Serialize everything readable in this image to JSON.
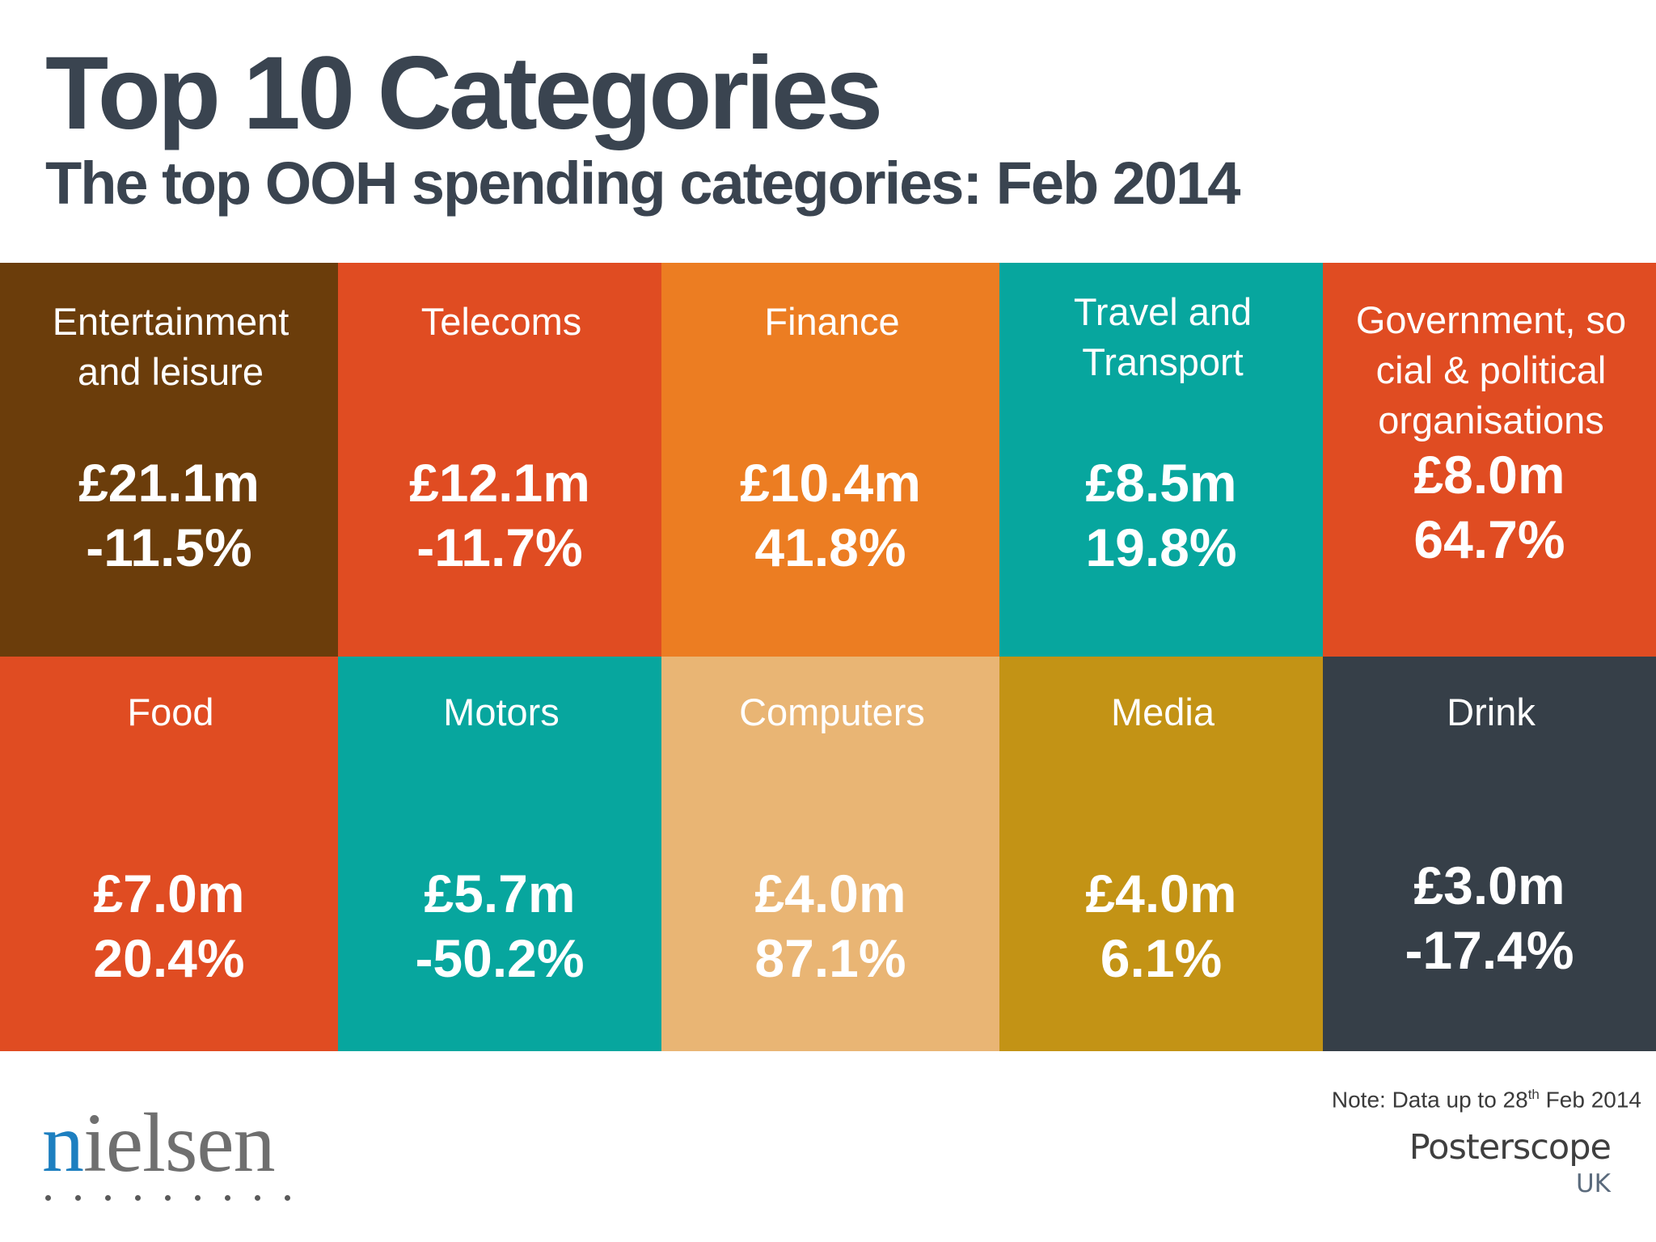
{
  "title": "Top 10 Categories",
  "subtitle": "The top OOH spending categories: Feb 2014",
  "chart_data": {
    "type": "table",
    "title": "Top 10 Categories",
    "subtitle": "The top OOH spending categories: Feb 2014",
    "categories": [
      {
        "label": "Entertainment and leisure",
        "spend": "£21.1m",
        "change": "-11.5%",
        "spend_m": 21.1,
        "change_pct": -11.5,
        "color": "#6b3d0b"
      },
      {
        "label": "Telecoms",
        "spend": "£12.1m",
        "change": "-11.7%",
        "spend_m": 12.1,
        "change_pct": -11.7,
        "color": "#e04c22"
      },
      {
        "label": "Finance",
        "spend": "£10.4m",
        "change": "41.8%",
        "spend_m": 10.4,
        "change_pct": 41.8,
        "color": "#ec7d22"
      },
      {
        "label": "Travel and Transport",
        "spend": "£8.5m",
        "change": "19.8%",
        "spend_m": 8.5,
        "change_pct": 19.8,
        "color": "#07a69e"
      },
      {
        "label": "Government, social & political organisations",
        "spend": "£8.0m",
        "change": "64.7%",
        "spend_m": 8.0,
        "change_pct": 64.7,
        "color": "#e04c22"
      },
      {
        "label": "Food",
        "spend": "£7.0m",
        "change": "20.4%",
        "spend_m": 7.0,
        "change_pct": 20.4,
        "color": "#e04c22"
      },
      {
        "label": "Motors",
        "spend": "£5.7m",
        "change": "-50.2%",
        "spend_m": 5.7,
        "change_pct": -50.2,
        "color": "#07a69e"
      },
      {
        "label": "Computers",
        "spend": "£4.0m",
        "change": "87.1%",
        "spend_m": 4.0,
        "change_pct": 87.1,
        "color": "#e9b574"
      },
      {
        "label": "Media",
        "spend": "£4.0m",
        "change": "6.1%",
        "spend_m": 4.0,
        "change_pct": 6.1,
        "color": "#c39315"
      },
      {
        "label": "Drink",
        "spend": "£3.0m",
        "change": "-17.4%",
        "spend_m": 3.0,
        "change_pct": -17.4,
        "color": "#363f48"
      }
    ]
  },
  "tiles": {
    "entertainment": {
      "line1": "Entertainment",
      "line2": "and leisure",
      "spend": "£21.1m",
      "change": "-11.5%"
    },
    "telecoms": {
      "line1": "Telecoms",
      "spend": "£12.1m",
      "change": "-11.7%"
    },
    "finance": {
      "line1": "Finance",
      "spend": "£10.4m",
      "change": "41.8%"
    },
    "travel": {
      "line1": "Travel and",
      "line2": "Transport",
      "spend": "£8.5m",
      "change": "19.8%"
    },
    "government": {
      "line1": "Government, so",
      "line2": "cial & political",
      "line3": "organisations",
      "spend": "£8.0m",
      "change": "64.7%"
    },
    "food": {
      "line1": "Food",
      "spend": "£7.0m",
      "change": "20.4%"
    },
    "motors": {
      "line1": "Motors",
      "spend": "£5.7m",
      "change": "-50.2%"
    },
    "computers": {
      "line1": "Computers",
      "spend": "£4.0m",
      "change": "87.1%"
    },
    "media": {
      "line1": "Media",
      "spend": "£4.0m",
      "change": "6.1%"
    },
    "drink": {
      "line1": "Drink",
      "spend": "£3.0m",
      "change": "-17.4%"
    }
  },
  "colors": {
    "brown": "#6b3d0b",
    "red_orange": "#e04c22",
    "orange": "#ec7d22",
    "teal": "#07a69e",
    "tan": "#e9b574",
    "mustard": "#c39315",
    "slate": "#363f48",
    "heading": "#3a4450"
  },
  "note": {
    "prefix": "Note: Data up to 28",
    "sup": "th",
    "suffix": " Feb 2014"
  },
  "logos": {
    "nielsen_n": "n",
    "nielsen_rest": "ielsen",
    "posterscope_name": "Posterscope",
    "posterscope_region": "UK"
  }
}
